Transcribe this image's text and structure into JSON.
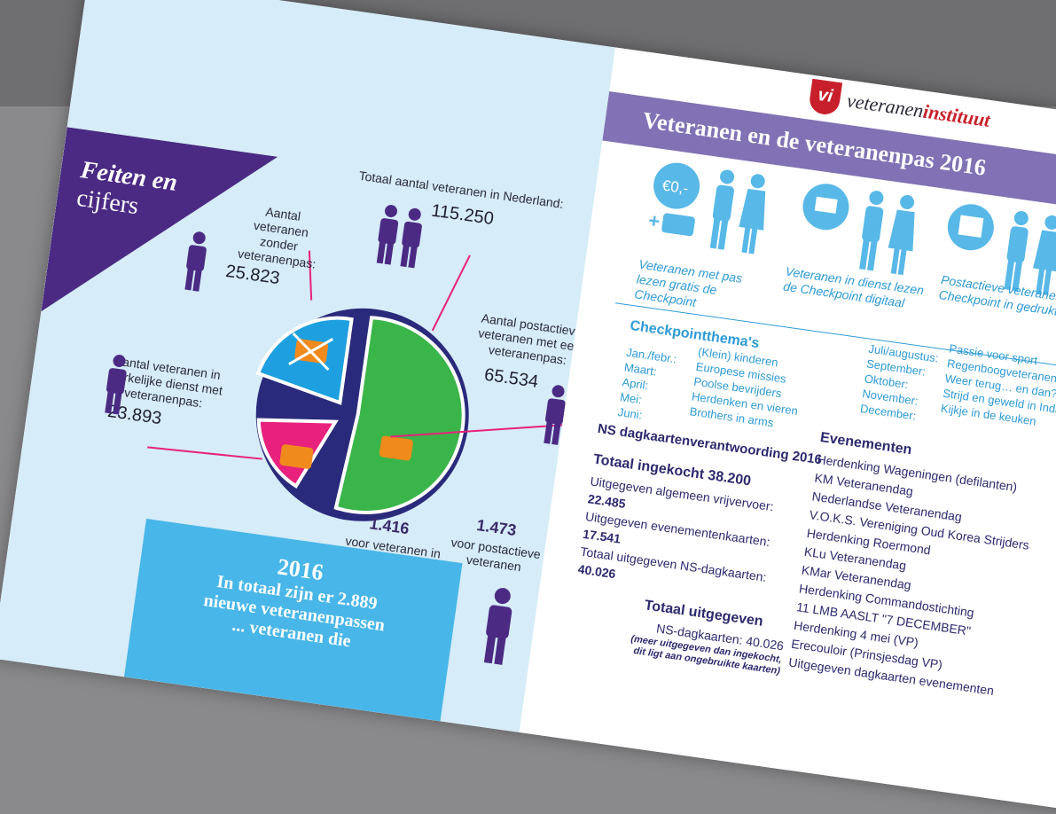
{
  "left": {
    "title_line1": "Feiten en",
    "title_line2": "cijfers",
    "totaal_label": "Totaal aantal veteranen in Nederland:",
    "totaal_value": "115.250",
    "zonder_label": "Aantal veteranen zonder veteranenpas:",
    "zonder_value": "25.823",
    "postactief_label": "Aantal postactieve veteranen met een veteranenpas:",
    "postactief_value": "65.534",
    "werkelijk_label": "Aantal veteranen in werkelijke dienst met veteranenpas:",
    "werkelijk_value": "23.893",
    "stat1_value": "1.416",
    "stat1_label": "voor veteranen in werkelijke dienst",
    "stat2_value": "1.473",
    "stat2_label": "voor postactieve veteranen",
    "box_year": "2016",
    "box_line1": "In totaal zijn er 2.889",
    "box_line2": "nieuwe veteranenpassen",
    "box_line3": "... veteranen die"
  },
  "right": {
    "logo_vi": "vi",
    "logo_a": "veteranen",
    "logo_b": "instituut",
    "banner": "Veteranen en de veteranenpas 2016",
    "euro": "€0,-",
    "cap1": "Veteranen met pas lezen gratis de Checkpoint",
    "cap2": "Veteranen in dienst lezen de Checkpoint digitaal",
    "cap3": "Postactieve veteranen lezen de Checkpoint in gedrukte vorm",
    "themas_title": "Checkpointthema's",
    "months_left": [
      "Jan./febr.:",
      "Maart:",
      "April:",
      "Mei:",
      "Juni:"
    ],
    "themes_left": [
      "(Klein) kinderen",
      "Europese missies",
      "Poolse bevrijders",
      "Herdenken en vieren",
      "Brothers in arms"
    ],
    "months_right": [
      "Juli/augustus:",
      "September:",
      "Oktober:",
      "November:",
      "December:"
    ],
    "themes_right": [
      "Passie voor sport",
      "Regenboogveteranen",
      "Weer terug… en dan?",
      "Strijd en geweld in Indië",
      "Kijkje in de keuken"
    ],
    "dag_title": "dagkaartenverantwoording 2016",
    "ns_title": "NS dagkaartenverantwoording 2016",
    "ingekocht": "Totaal ingekocht 38.200",
    "alg_label": "Uitgegeven algemeen vrijvervoer:",
    "alg_value": "22.485",
    "even_label": "Uitgegeven evenementenkaarten:",
    "even_value": "17.541",
    "ns_label": "Totaal uitgegeven NS-dagkaarten:",
    "ns_value": "40.026",
    "uitg_title": "Totaal uitgegeven",
    "uitg_line": "NS-dagkaarten: 40.026",
    "uitg_note1": "(meer uitgegeven dan ingekocht,",
    "uitg_note2": "dit ligt aan ongebruikte kaarten)",
    "ev_title": "Evenementen",
    "events": [
      "Herdenking Wageningen (defilanten)",
      "KM Veteranendag",
      "Nederlandse Veteranendag",
      "V.O.K.S. Vereniging Oud Korea Strijders",
      "Herdenking Roermond",
      "KLu Veteranendag",
      "KMar Veteranendag",
      "Herdenking Commandostichting",
      "11 LMB AASLT \"7 DECEMBER\"",
      "Herdenking 4 mei (VP)",
      "Erecouloir (Prinsjesdag VP)",
      "Uitgegeven dagkaarten evenementen"
    ]
  }
}
